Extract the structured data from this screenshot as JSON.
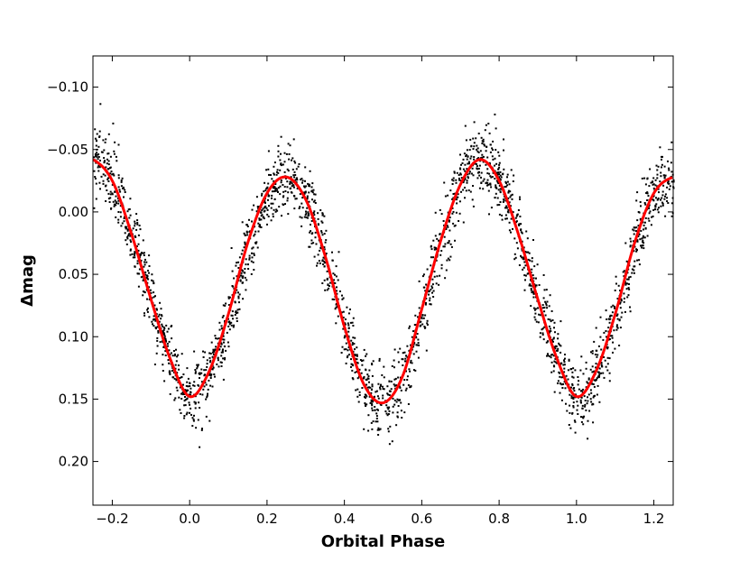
{
  "chart_data": {
    "type": "scatter",
    "xlabel": "Orbital Phase",
    "ylabel": "Δmag",
    "xlim": [
      -0.25,
      1.25
    ],
    "ylim": [
      0.235,
      -0.125
    ],
    "y_inverted": true,
    "xticks": [
      -0.2,
      0.0,
      0.2,
      0.4,
      0.6,
      0.8,
      1.0,
      1.2
    ],
    "xtick_labels": [
      "−0.2",
      "0.0",
      "0.2",
      "0.4",
      "0.6",
      "0.8",
      "1.0",
      "1.2"
    ],
    "yticks": [
      -0.1,
      -0.05,
      0.0,
      0.05,
      0.1,
      0.15,
      0.2
    ],
    "ytick_labels": [
      "−0.10",
      "−0.05",
      "0.00",
      "0.05",
      "0.10",
      "0.15",
      "0.20"
    ],
    "grid": false,
    "series": [
      {
        "kind": "points",
        "color": "#000000",
        "description_scatter": 0.014
      },
      {
        "kind": "model-curve",
        "color": "#ff0000",
        "x": [
          -0.25,
          -0.2,
          -0.15,
          -0.1,
          -0.05,
          0.0,
          0.05,
          0.1,
          0.15,
          0.2,
          0.25,
          0.3,
          0.35,
          0.4,
          0.45,
          0.5,
          0.55,
          0.6,
          0.65,
          0.7,
          0.75,
          0.8,
          0.85,
          0.9,
          0.95,
          1.0,
          1.05,
          1.1,
          1.15,
          1.2,
          1.25
        ],
        "y": [
          -0.042,
          -0.025,
          0.018,
          0.07,
          0.118,
          0.148,
          0.128,
          0.082,
          0.025,
          -0.015,
          -0.028,
          -0.01,
          0.035,
          0.092,
          0.138,
          0.153,
          0.132,
          0.078,
          0.022,
          -0.022,
          -0.042,
          -0.025,
          0.018,
          0.07,
          0.118,
          0.148,
          0.128,
          0.082,
          0.025,
          -0.015,
          -0.028
        ]
      }
    ]
  }
}
